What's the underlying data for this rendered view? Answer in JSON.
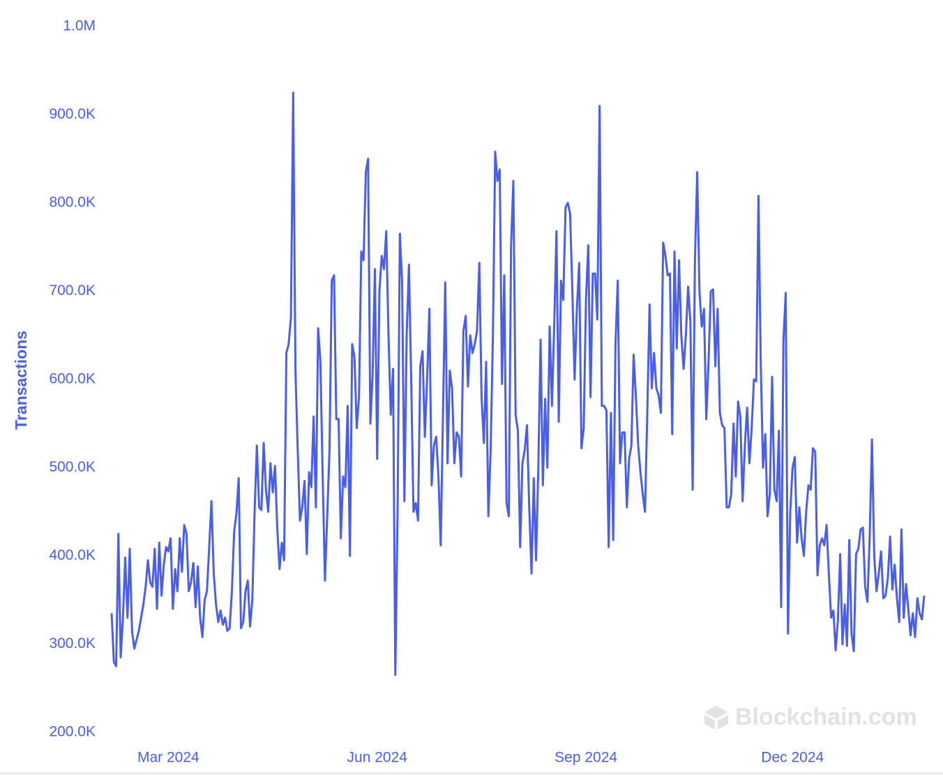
{
  "chart_data": {
    "type": "line",
    "y_label": "Transactions",
    "watermark": "Blockchain.com",
    "color": "#4a5ee8",
    "values": [
      335000,
      280000,
      275000,
      425000,
      285000,
      330000,
      398000,
      330000,
      408000,
      315000,
      295000,
      305000,
      315000,
      330000,
      345000,
      365000,
      395000,
      370000,
      365000,
      408000,
      340000,
      415000,
      355000,
      390000,
      410000,
      405000,
      420000,
      340000,
      385000,
      360000,
      420000,
      382000,
      435000,
      425000,
      360000,
      370000,
      392000,
      342000,
      388000,
      330000,
      308000,
      350000,
      360000,
      410000,
      462000,
      380000,
      345000,
      325000,
      338000,
      322000,
      330000,
      315000,
      318000,
      360000,
      428000,
      448000,
      488000,
      318000,
      325000,
      360000,
      372000,
      320000,
      350000,
      450000,
      525000,
      455000,
      452000,
      528000,
      475000,
      450000,
      505000,
      472000,
      502000,
      430000,
      385000,
      415000,
      395000,
      630000,
      640000,
      670000,
      925000,
      610000,
      520000,
      440000,
      455000,
      485000,
      402000,
      495000,
      478000,
      558000,
      455000,
      658000,
      620000,
      490000,
      372000,
      445000,
      520000,
      712000,
      718000,
      555000,
      555000,
      420000,
      490000,
      478000,
      570000,
      400000,
      640000,
      625000,
      545000,
      580000,
      745000,
      735000,
      835000,
      850000,
      550000,
      605000,
      725000,
      510000,
      700000,
      740000,
      725000,
      768000,
      650000,
      560000,
      612000,
      265000,
      450000,
      765000,
      710000,
      462000,
      650000,
      730000,
      600000,
      450000,
      460000,
      440000,
      615000,
      632000,
      535000,
      600000,
      680000,
      480000,
      525000,
      535000,
      490000,
      412000,
      560000,
      710000,
      505000,
      610000,
      590000,
      505000,
      540000,
      535000,
      490000,
      655000,
      672000,
      592000,
      650000,
      630000,
      640000,
      655000,
      732000,
      580000,
      528000,
      620000,
      445000,
      520000,
      650000,
      858000,
      825000,
      838000,
      595000,
      718000,
      460000,
      445000,
      752000,
      825000,
      560000,
      542000,
      410000,
      505000,
      520000,
      548000,
      455000,
      380000,
      488000,
      395000,
      500000,
      645000,
      480000,
      578000,
      500000,
      660000,
      570000,
      660000,
      768000,
      552000,
      712000,
      690000,
      795000,
      800000,
      788000,
      700000,
      600000,
      680000,
      732000,
      522000,
      545000,
      690000,
      752000,
      580000,
      720000,
      720000,
      668000,
      910000,
      570000,
      570000,
      565000,
      410000,
      562000,
      418000,
      640000,
      712000,
      505000,
      540000,
      540000,
      455000,
      510000,
      525000,
      628000,
      580000,
      525000,
      495000,
      470000,
      450000,
      560000,
      685000,
      590000,
      630000,
      590000,
      582000,
      562000,
      755000,
      740000,
      718000,
      720000,
      538000,
      745000,
      635000,
      735000,
      650000,
      612000,
      650000,
      705000,
      665000,
      475000,
      735000,
      835000,
      700000,
      660000,
      680000,
      555000,
      620000,
      700000,
      702000,
      615000,
      680000,
      562000,
      548000,
      545000,
      455000,
      455000,
      470000,
      550000,
      490000,
      575000,
      558000,
      462000,
      525000,
      568000,
      505000,
      545000,
      600000,
      598000,
      808000,
      620000,
      500000,
      538000,
      445000,
      470000,
      603000,
      475000,
      462000,
      542000,
      342000,
      645000,
      698000,
      312000,
      450000,
      500000,
      512000,
      415000,
      455000,
      420000,
      400000,
      450000,
      480000,
      475000,
      522000,
      518000,
      378000,
      412000,
      420000,
      412000,
      435000,
      380000,
      330000,
      338000,
      293000,
      328000,
      402000,
      300000,
      345000,
      298000,
      418000,
      312000,
      292000,
      402000,
      408000,
      430000,
      432000,
      365000,
      348000,
      422000,
      532000,
      400000,
      360000,
      380000,
      405000,
      352000,
      355000,
      375000,
      422000,
      362000,
      390000,
      352000,
      325000,
      430000,
      330000,
      368000,
      340000,
      310000,
      335000,
      308000,
      352000,
      335000,
      328000,
      355000
    ],
    "xlim": [
      0,
      358
    ],
    "xticks": [
      {
        "value": 25,
        "label": "Mar 2024"
      },
      {
        "value": 117,
        "label": "Jun 2024"
      },
      {
        "value": 209,
        "label": "Sep 2024"
      },
      {
        "value": 300,
        "label": "Dec 2024"
      }
    ],
    "ylim": [
      200000,
      1000000
    ],
    "yticks": [
      {
        "value": 200000,
        "label": "200.0K"
      },
      {
        "value": 300000,
        "label": "300.0K"
      },
      {
        "value": 400000,
        "label": "400.0K"
      },
      {
        "value": 500000,
        "label": "500.0K"
      },
      {
        "value": 600000,
        "label": "600.0K"
      },
      {
        "value": 700000,
        "label": "700.0K"
      },
      {
        "value": 800000,
        "label": "800.0K"
      },
      {
        "value": 900000,
        "label": "900.0K"
      },
      {
        "value": 1000000,
        "label": "1.0M"
      }
    ],
    "grid": false
  }
}
